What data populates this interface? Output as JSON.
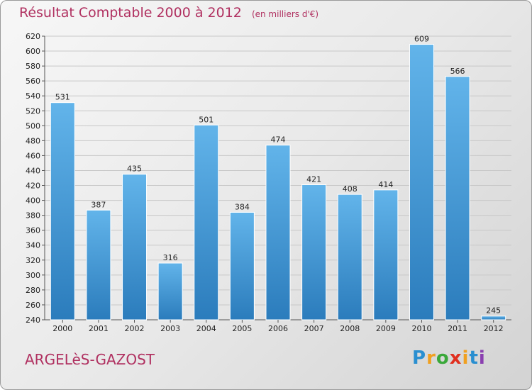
{
  "header": {
    "title": "Résultat Comptable 2000 à 2012",
    "subtitle": "(en milliers d'€)"
  },
  "footer": {
    "place": "ARGELèS-GAZOST",
    "brand": "Proxiti",
    "brand_letters": [
      "P",
      "r",
      "o",
      "x",
      "i",
      "t",
      "i"
    ],
    "brand_colors": [
      "#2a8fd0",
      "#f0a020",
      "#3aa83a",
      "#e03020",
      "#f0a020",
      "#2a8fd0",
      "#8a3fb0"
    ]
  },
  "colors": {
    "bar_top": "#62b4ea",
    "bar_bottom": "#2b7cbc",
    "title": "#b03060"
  },
  "chart_data": {
    "type": "bar",
    "categories": [
      "2000",
      "2001",
      "2002",
      "2003",
      "2004",
      "2005",
      "2006",
      "2007",
      "2008",
      "2009",
      "2010",
      "2011",
      "2012"
    ],
    "values": [
      531,
      387,
      435,
      316,
      501,
      384,
      474,
      421,
      408,
      414,
      609,
      566,
      245
    ],
    "ylim": [
      240,
      620
    ],
    "yticks": [
      240,
      260,
      280,
      300,
      320,
      340,
      360,
      380,
      400,
      420,
      440,
      460,
      480,
      500,
      520,
      540,
      560,
      580,
      600,
      620
    ],
    "grid": true
  }
}
